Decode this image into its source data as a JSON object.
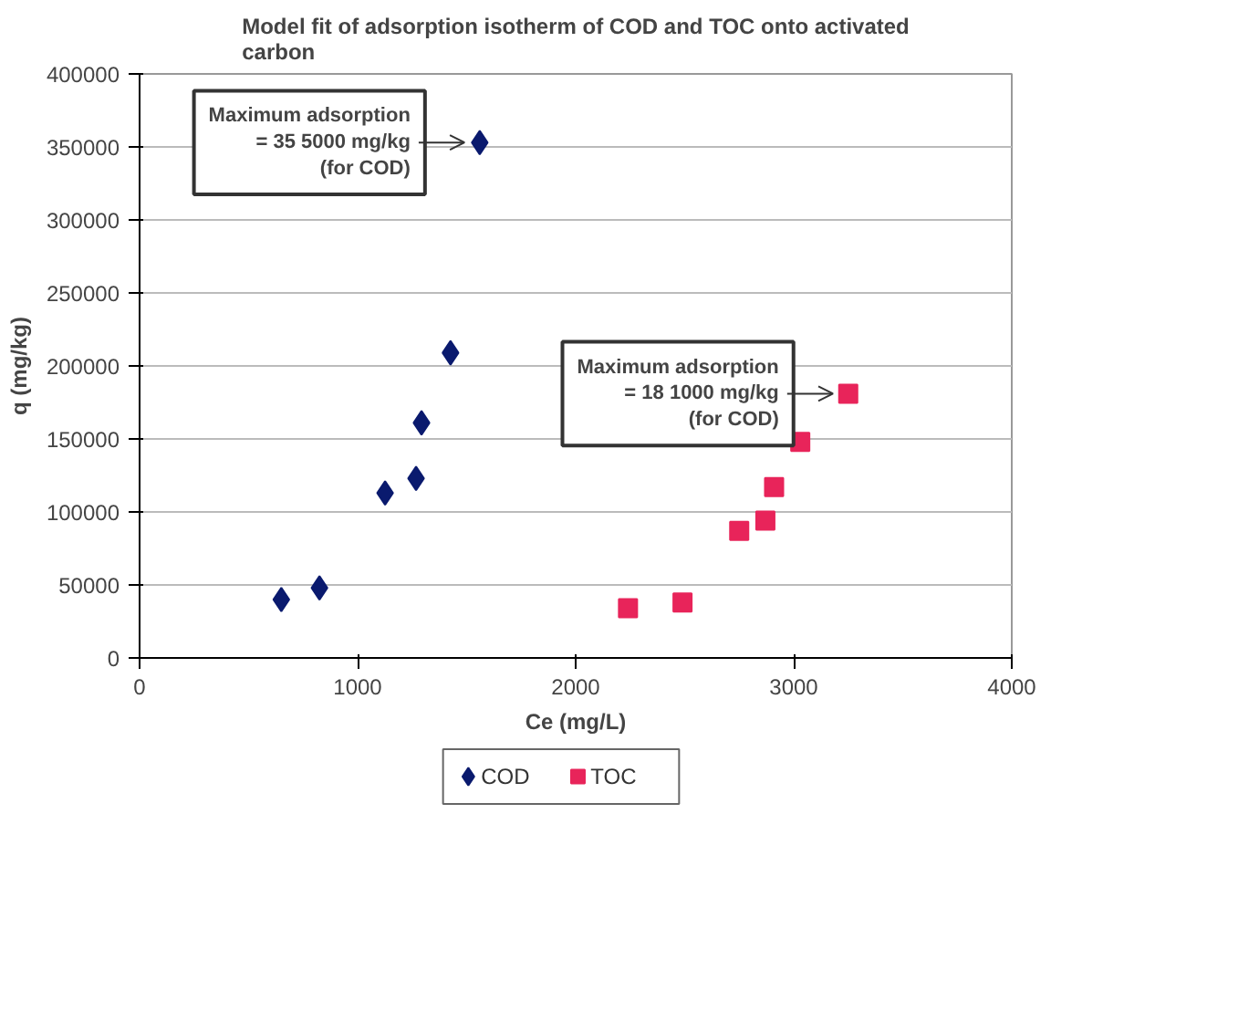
{
  "chart_data": {
    "type": "scatter",
    "title": "Model fit of adsorption isotherm of COD and TOC onto activated carbon",
    "xlabel": "Ce (mg/L)",
    "ylabel": "q (mg/kg)",
    "xlim": [
      0,
      4000
    ],
    "xticks": [
      0,
      1000,
      2000,
      3000,
      4000
    ],
    "ylim": [
      0,
      400000
    ],
    "yticks": [
      0,
      50000,
      100000,
      150000,
      200000,
      250000,
      300000,
      350000,
      400000
    ],
    "grid": "y",
    "legend": "bottom",
    "series": [
      {
        "name": "COD",
        "color": "#0a1a6e",
        "marker": "diamond",
        "x": [
          650,
          825,
          1126,
          1268,
          1293,
          1426,
          1560
        ],
        "values": [
          40000,
          48000,
          113000,
          123000,
          161000,
          209000,
          353000
        ]
      },
      {
        "name": "TOC",
        "color": "#e8245a",
        "marker": "square",
        "x": [
          2240,
          2490,
          2750,
          2870,
          2910,
          3030,
          3250
        ],
        "values": [
          34000,
          38000,
          87000,
          94000,
          117000,
          148000,
          181000
        ]
      }
    ],
    "annotations": [
      {
        "text": "Maximum adsorption = 35 5000 mg/kg (for COD)",
        "x": 1560,
        "y": 353000
      },
      {
        "text": "Maximum adsorption = 18 1000 mg/kg (for COD)",
        "x": 3250,
        "y": 181000
      }
    ]
  }
}
